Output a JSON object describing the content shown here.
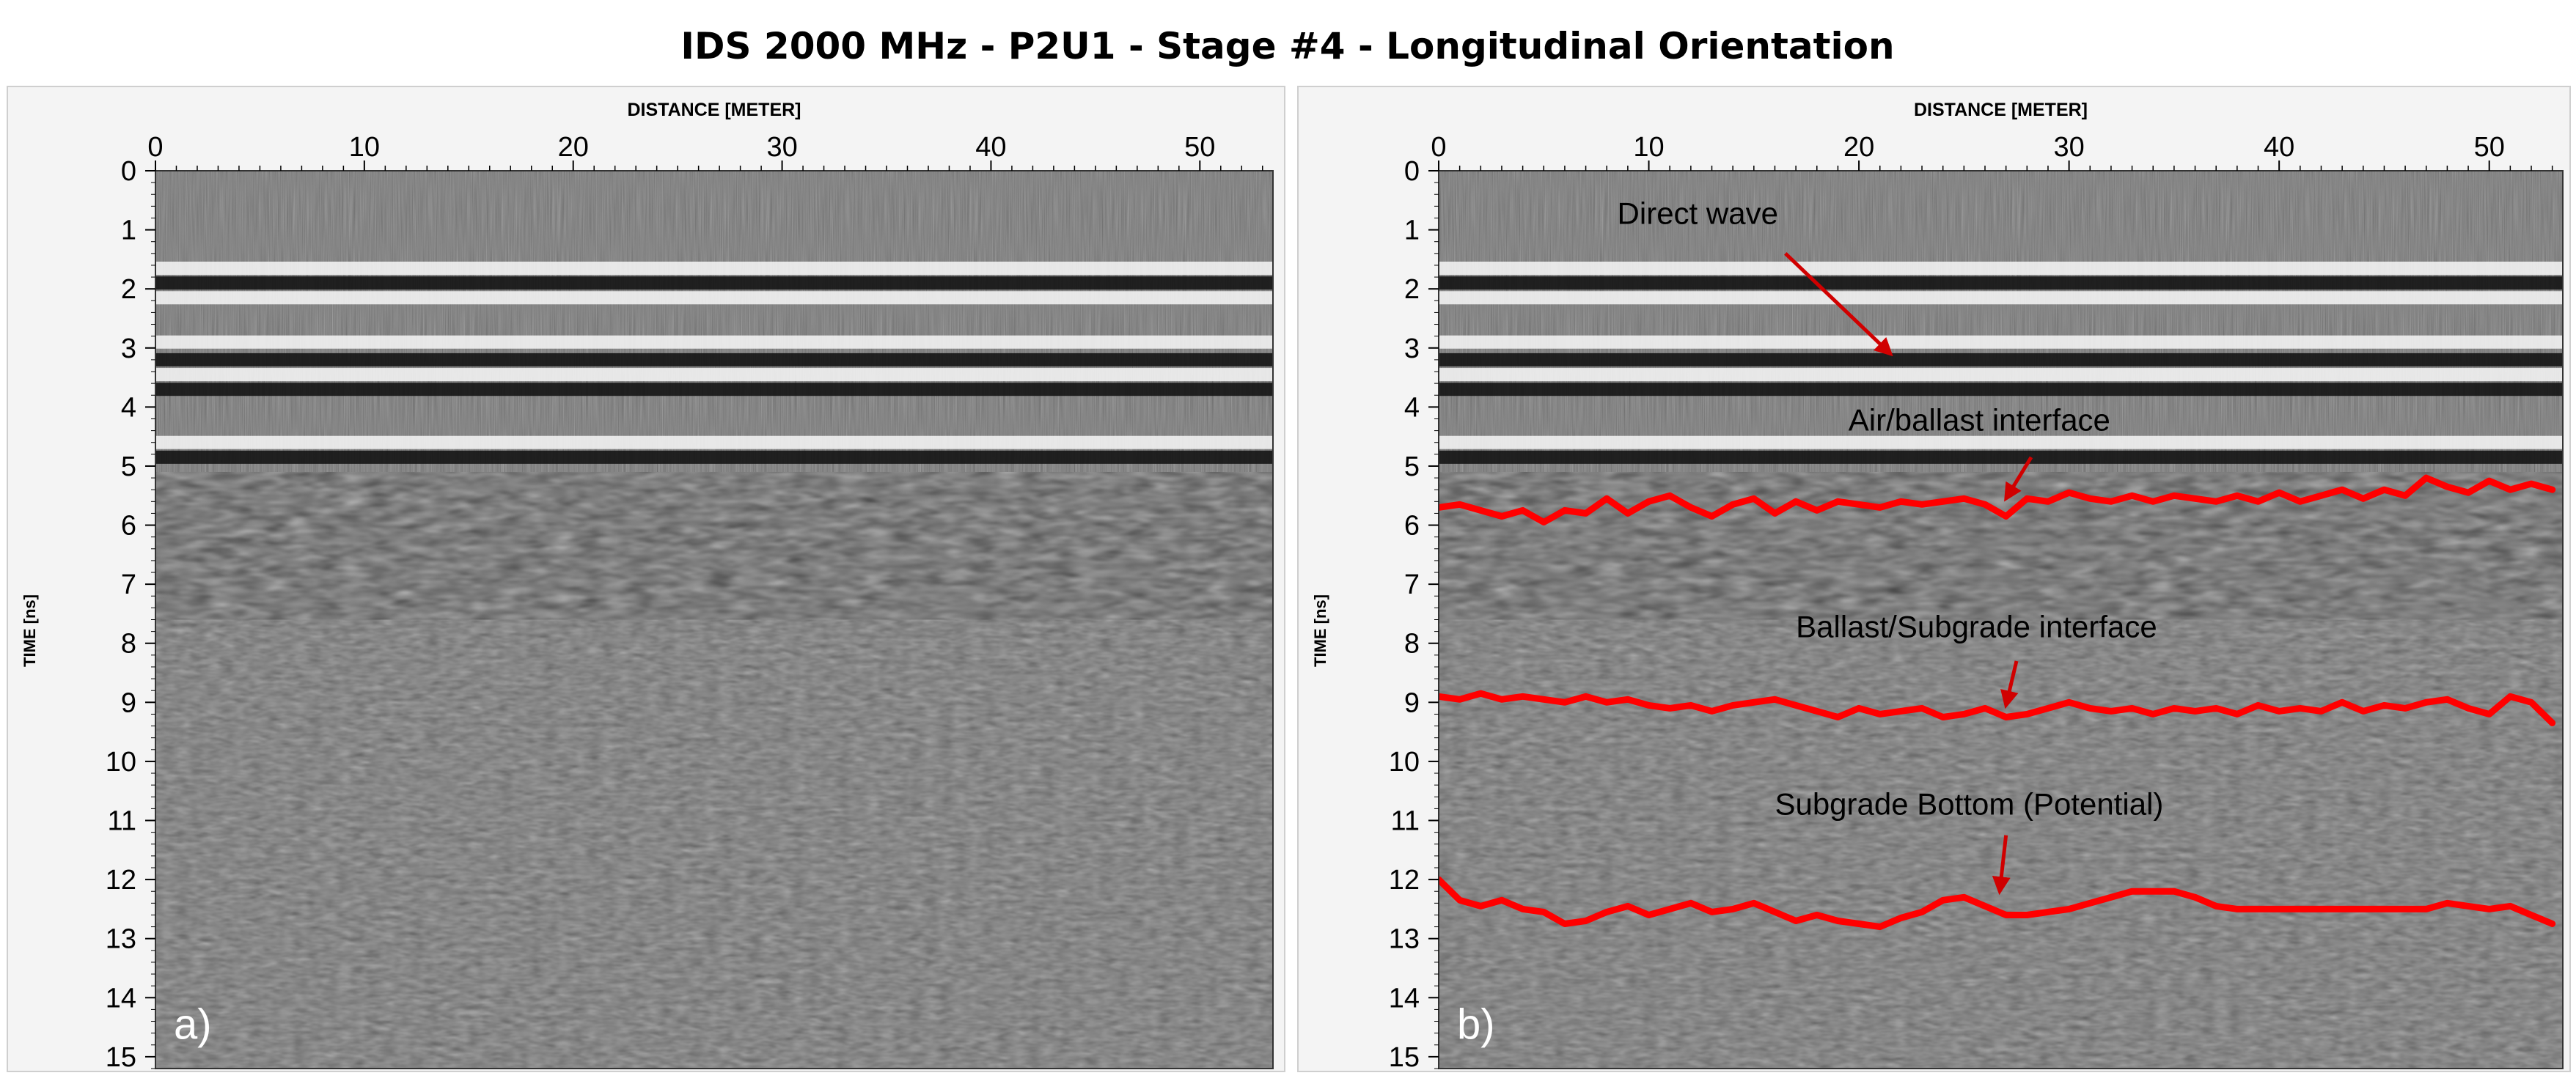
{
  "figure_title": "IDS 2000 MHz - P2U1 - Stage #4 - Longitudinal Orientation",
  "chart_data": [
    {
      "type": "heatmap",
      "panel_label": "a)",
      "title": "",
      "xlabel": "DISTANCE [METER]",
      "ylabel": "TIME [ns]",
      "xlim": [
        0,
        53.5
      ],
      "ylim": [
        0,
        15.2
      ],
      "x_ticks": [
        0,
        10,
        20,
        30,
        40,
        50
      ],
      "y_ticks": [
        0,
        1,
        2,
        3,
        4,
        5,
        6,
        7,
        8,
        9,
        10,
        11,
        12,
        13,
        14,
        15
      ],
      "colormap": "grayscale",
      "reflection_bands_ns": [
        {
          "t": 1.65,
          "polarity": "light"
        },
        {
          "t": 1.9,
          "polarity": "dark"
        },
        {
          "t": 2.15,
          "polarity": "light"
        },
        {
          "t": 2.9,
          "polarity": "light"
        },
        {
          "t": 3.2,
          "polarity": "dark"
        },
        {
          "t": 3.45,
          "polarity": "light"
        },
        {
          "t": 3.7,
          "polarity": "dark"
        },
        {
          "t": 4.6,
          "polarity": "light"
        },
        {
          "t": 4.85,
          "polarity": "dark"
        }
      ],
      "noise_zone_ns": [
        5.1,
        15.2
      ],
      "annotations": [],
      "interfaces": []
    },
    {
      "type": "heatmap",
      "panel_label": "b)",
      "title": "",
      "xlabel": "DISTANCE [METER]",
      "ylabel": "TIME [ns]",
      "xlim": [
        0,
        53.5
      ],
      "ylim": [
        0,
        15.2
      ],
      "x_ticks": [
        0,
        10,
        20,
        30,
        40,
        50
      ],
      "y_ticks": [
        0,
        1,
        2,
        3,
        4,
        5,
        6,
        7,
        8,
        9,
        10,
        11,
        12,
        13,
        14,
        15
      ],
      "colormap": "grayscale",
      "reflection_bands_ns": [
        {
          "t": 1.65,
          "polarity": "light"
        },
        {
          "t": 1.9,
          "polarity": "dark"
        },
        {
          "t": 2.15,
          "polarity": "light"
        },
        {
          "t": 2.9,
          "polarity": "light"
        },
        {
          "t": 3.2,
          "polarity": "dark"
        },
        {
          "t": 3.45,
          "polarity": "light"
        },
        {
          "t": 3.7,
          "polarity": "dark"
        },
        {
          "t": 4.6,
          "polarity": "light"
        },
        {
          "t": 4.85,
          "polarity": "dark"
        }
      ],
      "noise_zone_ns": [
        5.1,
        15.2
      ],
      "annotations": [
        {
          "text": "Direct wave",
          "text_at": [
            8.5,
            0.9
          ],
          "arrow_from": [
            16.5,
            1.4
          ],
          "arrow_to": [
            21.5,
            3.1
          ]
        },
        {
          "text": "Air/ballast interface",
          "text_at": [
            19.5,
            4.4
          ],
          "arrow_from": [
            28.2,
            4.85
          ],
          "arrow_to": [
            27.0,
            5.55
          ]
        },
        {
          "text": "Ballast/Subgrade interface",
          "text_at": [
            17.0,
            7.9
          ],
          "arrow_from": [
            27.5,
            8.3
          ],
          "arrow_to": [
            27.0,
            9.05
          ]
        },
        {
          "text": "Subgrade Bottom (Potential)",
          "text_at": [
            16.0,
            10.9
          ],
          "arrow_from": [
            27.0,
            11.25
          ],
          "arrow_to": [
            26.7,
            12.2
          ]
        }
      ],
      "interfaces": [
        {
          "name": "Air/ballast interface",
          "color": "#ff0000",
          "points": [
            [
              0,
              5.7
            ],
            [
              1,
              5.65
            ],
            [
              2,
              5.75
            ],
            [
              3,
              5.85
            ],
            [
              4,
              5.75
            ],
            [
              5,
              5.95
            ],
            [
              6,
              5.75
            ],
            [
              7,
              5.8
            ],
            [
              8,
              5.55
            ],
            [
              9,
              5.8
            ],
            [
              10,
              5.6
            ],
            [
              11,
              5.5
            ],
            [
              12,
              5.7
            ],
            [
              13,
              5.85
            ],
            [
              14,
              5.65
            ],
            [
              15,
              5.55
            ],
            [
              16,
              5.8
            ],
            [
              17,
              5.6
            ],
            [
              18,
              5.75
            ],
            [
              19,
              5.6
            ],
            [
              20,
              5.65
            ],
            [
              21,
              5.7
            ],
            [
              22,
              5.6
            ],
            [
              23,
              5.65
            ],
            [
              24,
              5.6
            ],
            [
              25,
              5.55
            ],
            [
              26,
              5.65
            ],
            [
              27,
              5.85
            ],
            [
              28,
              5.55
            ],
            [
              29,
              5.6
            ],
            [
              30,
              5.45
            ],
            [
              31,
              5.55
            ],
            [
              32,
              5.6
            ],
            [
              33,
              5.5
            ],
            [
              34,
              5.6
            ],
            [
              35,
              5.5
            ],
            [
              36,
              5.55
            ],
            [
              37,
              5.6
            ],
            [
              38,
              5.5
            ],
            [
              39,
              5.6
            ],
            [
              40,
              5.45
            ],
            [
              41,
              5.6
            ],
            [
              42,
              5.5
            ],
            [
              43,
              5.4
            ],
            [
              44,
              5.55
            ],
            [
              45,
              5.4
            ],
            [
              46,
              5.5
            ],
            [
              47,
              5.2
            ],
            [
              48,
              5.35
            ],
            [
              49,
              5.45
            ],
            [
              50,
              5.25
            ],
            [
              51,
              5.4
            ],
            [
              52,
              5.3
            ],
            [
              53,
              5.4
            ]
          ]
        },
        {
          "name": "Ballast/Subgrade interface",
          "color": "#ff0000",
          "points": [
            [
              0,
              8.9
            ],
            [
              1,
              8.95
            ],
            [
              2,
              8.85
            ],
            [
              3,
              8.95
            ],
            [
              4,
              8.9
            ],
            [
              5,
              8.95
            ],
            [
              6,
              9.0
            ],
            [
              7,
              8.9
            ],
            [
              8,
              9.0
            ],
            [
              9,
              8.95
            ],
            [
              10,
              9.05
            ],
            [
              11,
              9.1
            ],
            [
              12,
              9.05
            ],
            [
              13,
              9.15
            ],
            [
              14,
              9.05
            ],
            [
              15,
              9.0
            ],
            [
              16,
              8.95
            ],
            [
              17,
              9.05
            ],
            [
              18,
              9.15
            ],
            [
              19,
              9.25
            ],
            [
              20,
              9.1
            ],
            [
              21,
              9.2
            ],
            [
              22,
              9.15
            ],
            [
              23,
              9.1
            ],
            [
              24,
              9.25
            ],
            [
              25,
              9.2
            ],
            [
              26,
              9.1
            ],
            [
              27,
              9.25
            ],
            [
              28,
              9.2
            ],
            [
              29,
              9.1
            ],
            [
              30,
              9.0
            ],
            [
              31,
              9.1
            ],
            [
              32,
              9.15
            ],
            [
              33,
              9.1
            ],
            [
              34,
              9.2
            ],
            [
              35,
              9.1
            ],
            [
              36,
              9.15
            ],
            [
              37,
              9.1
            ],
            [
              38,
              9.2
            ],
            [
              39,
              9.05
            ],
            [
              40,
              9.15
            ],
            [
              41,
              9.1
            ],
            [
              42,
              9.15
            ],
            [
              43,
              9.0
            ],
            [
              44,
              9.15
            ],
            [
              45,
              9.05
            ],
            [
              46,
              9.1
            ],
            [
              47,
              9.0
            ],
            [
              48,
              8.95
            ],
            [
              49,
              9.1
            ],
            [
              50,
              9.2
            ],
            [
              51,
              8.9
            ],
            [
              52,
              9.0
            ],
            [
              53,
              9.35
            ]
          ]
        },
        {
          "name": "Subgrade Bottom (Potential)",
          "color": "#ff0000",
          "points": [
            [
              0,
              12.0
            ],
            [
              1,
              12.35
            ],
            [
              2,
              12.45
            ],
            [
              3,
              12.35
            ],
            [
              4,
              12.5
            ],
            [
              5,
              12.55
            ],
            [
              6,
              12.75
            ],
            [
              7,
              12.7
            ],
            [
              8,
              12.55
            ],
            [
              9,
              12.45
            ],
            [
              10,
              12.6
            ],
            [
              11,
              12.5
            ],
            [
              12,
              12.4
            ],
            [
              13,
              12.55
            ],
            [
              14,
              12.5
            ],
            [
              15,
              12.4
            ],
            [
              16,
              12.55
            ],
            [
              17,
              12.7
            ],
            [
              18,
              12.6
            ],
            [
              19,
              12.7
            ],
            [
              20,
              12.75
            ],
            [
              21,
              12.8
            ],
            [
              22,
              12.65
            ],
            [
              23,
              12.55
            ],
            [
              24,
              12.35
            ],
            [
              25,
              12.3
            ],
            [
              26,
              12.45
            ],
            [
              27,
              12.6
            ],
            [
              28,
              12.6
            ],
            [
              29,
              12.55
            ],
            [
              30,
              12.5
            ],
            [
              31,
              12.4
            ],
            [
              32,
              12.3
            ],
            [
              33,
              12.2
            ],
            [
              34,
              12.2
            ],
            [
              35,
              12.2
            ],
            [
              36,
              12.3
            ],
            [
              37,
              12.45
            ],
            [
              38,
              12.5
            ],
            [
              39,
              12.5
            ],
            [
              40,
              12.5
            ],
            [
              41,
              12.5
            ],
            [
              42,
              12.5
            ],
            [
              43,
              12.5
            ],
            [
              44,
              12.5
            ],
            [
              45,
              12.5
            ],
            [
              46,
              12.5
            ],
            [
              47,
              12.5
            ],
            [
              48,
              12.4
            ],
            [
              49,
              12.45
            ],
            [
              50,
              12.5
            ],
            [
              51,
              12.45
            ],
            [
              52,
              12.6
            ],
            [
              53,
              12.75
            ]
          ]
        }
      ]
    }
  ]
}
